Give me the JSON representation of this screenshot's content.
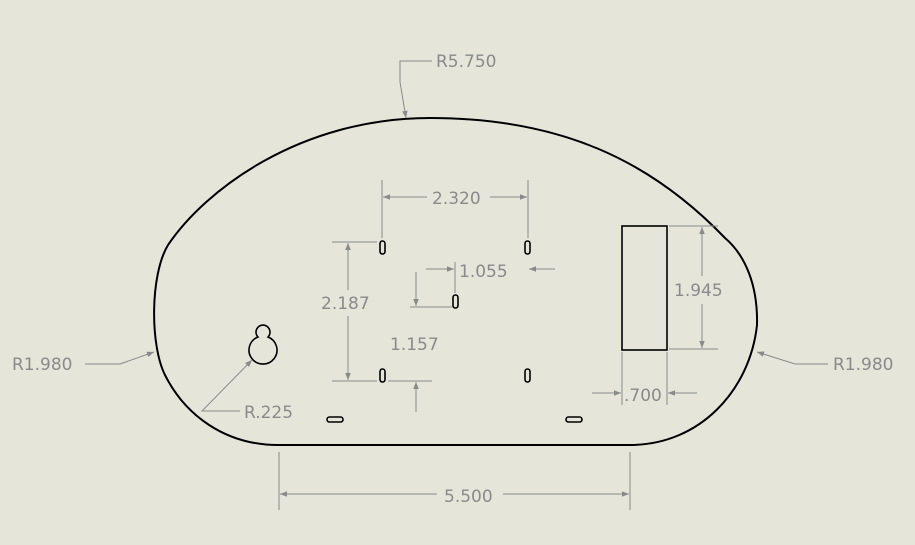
{
  "drawing": {
    "radius_top": "R5.750",
    "radius_left": "R1.980",
    "radius_right": "R1.980",
    "radius_keyhole": "R.225",
    "dim_hole_spacing_horizontal": "2.320",
    "dim_hole_spacing_vertical": "2.187",
    "dim_offset_horizontal": "1.055",
    "dim_offset_vertical": "1.157",
    "dim_slot_height": "1.945",
    "dim_slot_width": ".700",
    "dim_overall_width": "5.500"
  },
  "colors": {
    "background": "#e6e5da",
    "outline": "#000000",
    "dimension": "#8a8a8a"
  }
}
